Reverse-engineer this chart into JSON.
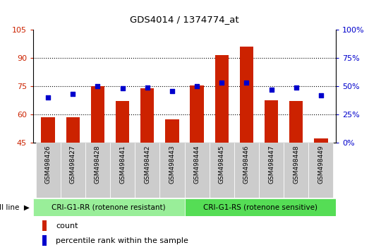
{
  "title": "GDS4014 / 1374774_at",
  "samples": [
    "GSM498426",
    "GSM498427",
    "GSM498428",
    "GSM498441",
    "GSM498442",
    "GSM498443",
    "GSM498444",
    "GSM498445",
    "GSM498446",
    "GSM498447",
    "GSM498448",
    "GSM498449"
  ],
  "count_values": [
    58.5,
    58.5,
    75.0,
    67.0,
    74.0,
    57.5,
    75.5,
    91.5,
    96.0,
    67.5,
    67.0,
    47.0
  ],
  "percentile_values": [
    40,
    43,
    50,
    48,
    49,
    46,
    50,
    53,
    53,
    47,
    49,
    42
  ],
  "left_ylim": [
    45,
    105
  ],
  "left_yticks": [
    45,
    60,
    75,
    90,
    105
  ],
  "right_ylim": [
    0,
    100
  ],
  "right_yticks": [
    0,
    25,
    50,
    75,
    100
  ],
  "right_yticklabels": [
    "0%",
    "25%",
    "50%",
    "75%",
    "100%"
  ],
  "bar_color": "#CC2200",
  "scatter_color": "#0000CC",
  "group1_label": "CRI-G1-RR (rotenone resistant)",
  "group2_label": "CRI-G1-RS (rotenone sensitive)",
  "group1_color": "#99EE99",
  "group2_color": "#55DD55",
  "cell_line_label": "cell line",
  "legend_count_label": "count",
  "legend_percentile_label": "percentile rank within the sample",
  "tick_label_color_left": "#CC2200",
  "tick_label_color_right": "#0000CC",
  "ticklabel_bg": "#CCCCCC",
  "n_group1": 6,
  "n_group2": 6
}
